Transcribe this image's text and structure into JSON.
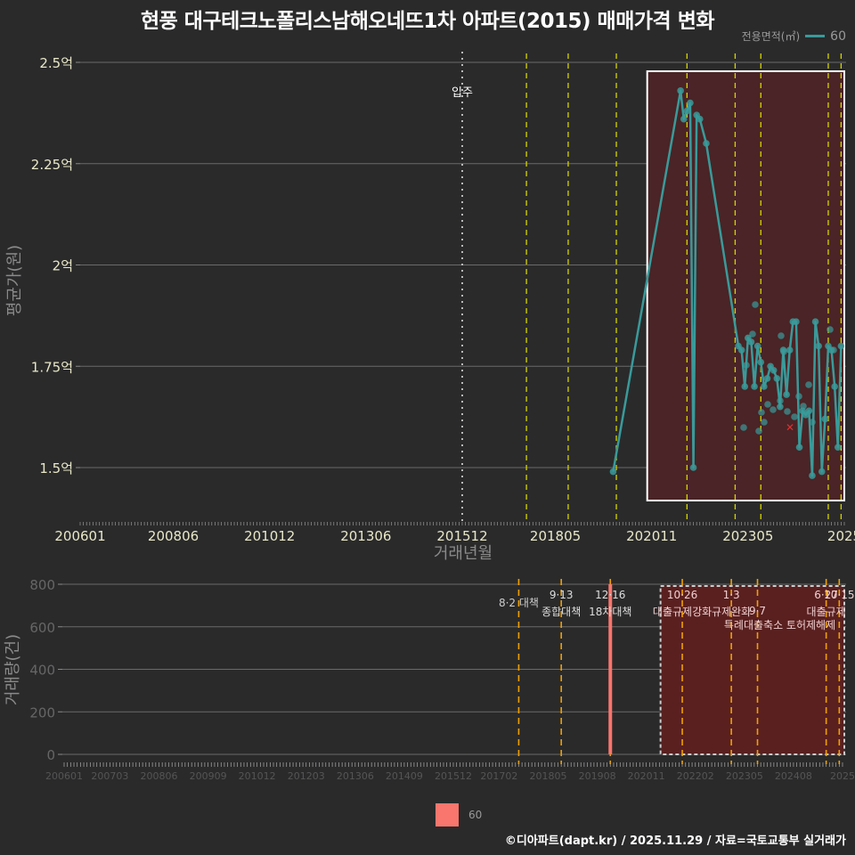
{
  "title": "현풍 대구테크노폴리스남해오네뜨1차 아파트(2015) 매매가격 변화",
  "legend_top": {
    "title": "전용면적(㎡)",
    "label": "60",
    "color": "#3a9a9a"
  },
  "legend_bottom": {
    "label": "60",
    "color": "#f8766d"
  },
  "footer": "©디아파트(dapt.kr) / 2025.11.29 / 자료=국토교통부 실거래가",
  "colors": {
    "background": "#2a2a2b",
    "line": "#3a9a9a",
    "highlight_fill": "#4a2426",
    "bar_highlight_fill": "#5a2020",
    "policy_line_top": "#d4d400",
    "policy_line_bottom": "#f0a000",
    "bar": "#f8766d"
  },
  "chart_data": [
    {
      "type": "line",
      "title": "현풍 대구테크노폴리스남해오네뜨1차 아파트(2015) 매매가격 변화",
      "xlabel": "거래년월",
      "ylabel": "평균가(원)",
      "x_tick_labels": [
        "200601",
        "200806",
        "201012",
        "201306",
        "201512",
        "201805",
        "202011",
        "202305",
        "2025"
      ],
      "y_tick_labels": [
        "1.5억",
        "1.75억",
        "2억",
        "2.25억",
        "2.5억"
      ],
      "ylim": [
        1.38,
        2.52
      ],
      "grid": true,
      "annotation": {
        "label": "입주",
        "x": "201512"
      },
      "series": [
        {
          "name": "60",
          "x": [
            "201911",
            "202108",
            "202109",
            "202110",
            "202111",
            "202112",
            "202201",
            "202202",
            "202204",
            "202302",
            "202303",
            "202304",
            "202305",
            "202306",
            "202307",
            "202308",
            "202309",
            "202310",
            "202311",
            "202312",
            "202401",
            "202402",
            "202403",
            "202404",
            "202405",
            "202406",
            "202407",
            "202408",
            "202409",
            "202410",
            "202411",
            "202412",
            "202501",
            "202502",
            "202503",
            "202504",
            "202505",
            "202506",
            "202507",
            "202508",
            "202509",
            "202510"
          ],
          "values": [
            1.49,
            2.43,
            2.36,
            2.38,
            2.4,
            1.5,
            2.37,
            2.36,
            2.3,
            1.8,
            1.79,
            1.7,
            1.82,
            1.81,
            1.7,
            1.8,
            1.76,
            1.7,
            1.72,
            1.75,
            1.74,
            1.72,
            1.65,
            1.79,
            1.68,
            1.79,
            1.86,
            1.86,
            1.55,
            1.64,
            1.63,
            1.64,
            1.48,
            1.86,
            1.8,
            1.49,
            1.62,
            1.8,
            1.79,
            1.7,
            1.55,
            1.8
          ]
        }
      ],
      "highlight_region": {
        "from": "202011",
        "to": "202511"
      },
      "outlier_marker": {
        "x": "202401",
        "value": 1.6,
        "symbol": "x",
        "color": "#e03030"
      }
    },
    {
      "type": "bar",
      "xlabel": "",
      "ylabel": "거래량(건)",
      "x_tick_labels": [
        "200601",
        "200703",
        "200806",
        "200909",
        "201012",
        "201203",
        "201306",
        "201409",
        "201512",
        "201702",
        "201805",
        "201908",
        "202011",
        "202202",
        "202305",
        "202408",
        "2025"
      ],
      "y_tick_labels": [
        "0",
        "200",
        "400",
        "600",
        "800"
      ],
      "ylim": [
        0,
        800
      ],
      "grid": true,
      "series": [
        {
          "name": "60",
          "x": [
            "201912"
          ],
          "values": [
            800
          ]
        }
      ],
      "policy_annotations": [
        {
          "date": "8·2",
          "label": "대책",
          "x": "201708"
        },
        {
          "date": "9·13",
          "label": "종합대책",
          "x": "201809"
        },
        {
          "date": "12·16",
          "label": "18차대책",
          "x": "201912"
        },
        {
          "date": "10·26",
          "label": "대출규제강화",
          "x": "202110"
        },
        {
          "date": "1·3",
          "label": "규제완화",
          "x": "202301"
        },
        {
          "date": "9·7",
          "label": "특례대출축소 토허제해제",
          "x": "202309"
        },
        {
          "date": "6·27",
          "label": "대출규제",
          "x": "202506"
        },
        {
          "date": "10·15",
          "label": "",
          "x": "202510"
        }
      ],
      "highlight_region": {
        "from": "202011",
        "to": "202511"
      }
    }
  ]
}
